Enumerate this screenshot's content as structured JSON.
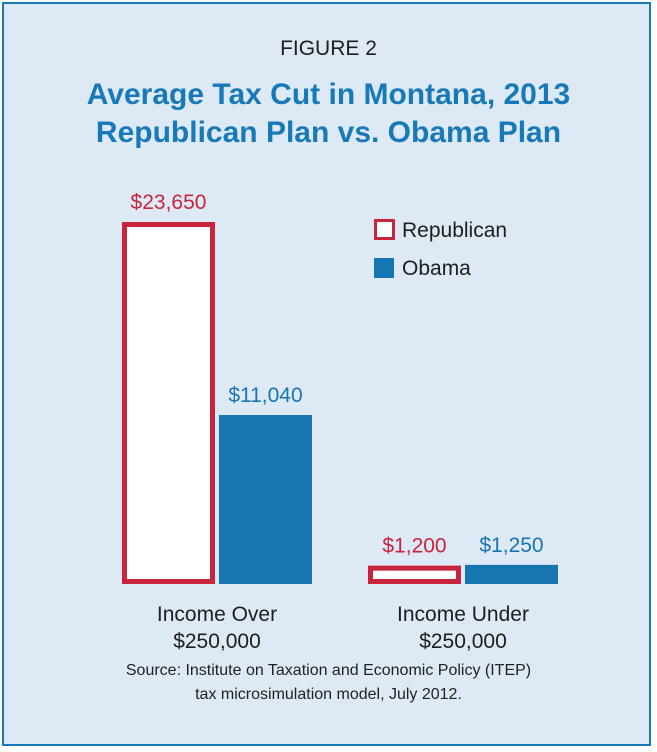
{
  "figure_label": "FIGURE 2",
  "title_line1": "Average Tax Cut in Montana, 2013",
  "title_line2": "Republican Plan vs. Obama Plan",
  "source_line1": "Source: Institute on Taxation and Economic Policy (ITEP)",
  "source_line2": "tax microsimulation model, July 2012.",
  "colors": {
    "republican": "#c8243c",
    "obama": "#1776b0",
    "title": "#1779b8",
    "background": "#dde9f5"
  },
  "chart_data": {
    "type": "bar",
    "title": "Average Tax Cut in Montana, 2013",
    "subtitle": "Republican Plan vs. Obama Plan",
    "categories": [
      [
        "Income Over",
        "$250,000"
      ],
      [
        "Income Under",
        "$250,000"
      ]
    ],
    "series": [
      {
        "name": "Republican",
        "values": [
          23650,
          1200
        ],
        "labels": [
          "$23,650",
          "$1,200"
        ],
        "style": "outline"
      },
      {
        "name": "Obama",
        "values": [
          11040,
          1250
        ],
        "labels": [
          "$11,040",
          "$1,250"
        ],
        "style": "filled"
      }
    ],
    "ylim": [
      0,
      23650
    ],
    "legend": "top-right",
    "grid": false,
    "xlabel": "",
    "ylabel": ""
  }
}
